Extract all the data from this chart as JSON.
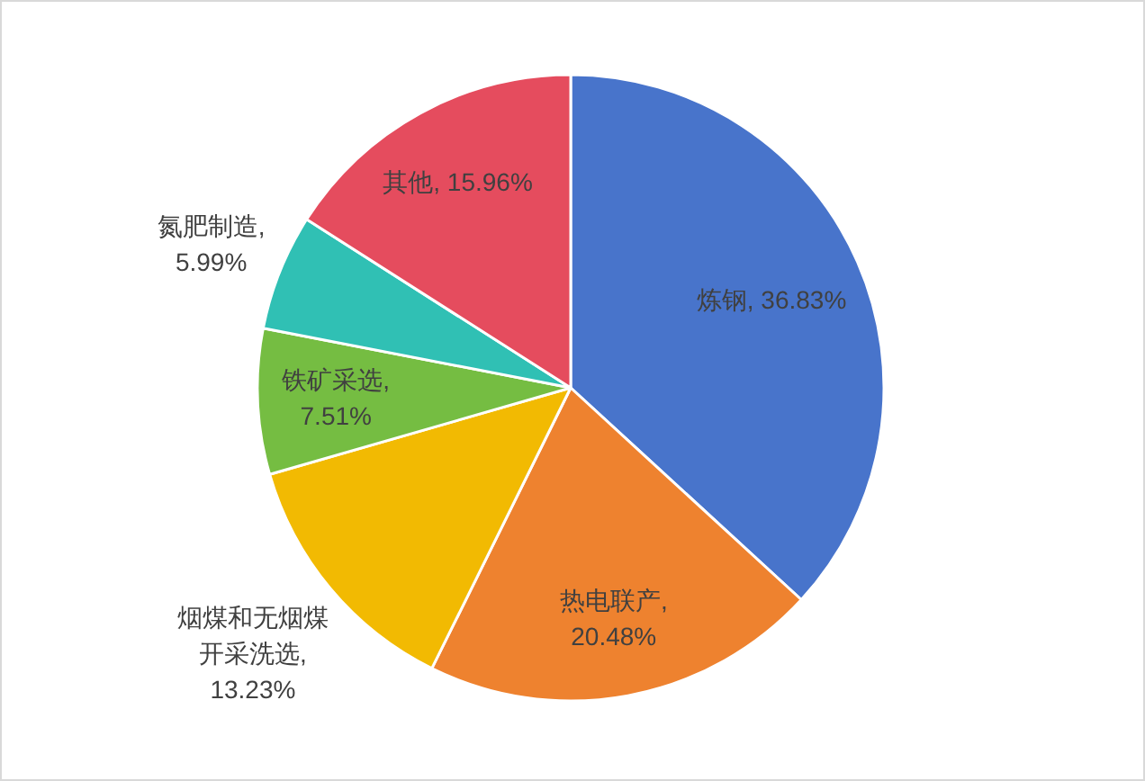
{
  "chart_data": {
    "type": "pie",
    "categories": [
      "炼钢",
      "热电联产",
      "烟煤和无烟煤开采洗选",
      "铁矿采选",
      "氮肥制造",
      "其他"
    ],
    "values": [
      36.83,
      20.48,
      13.23,
      7.51,
      5.99,
      15.96
    ],
    "colors": [
      "#4874cb",
      "#ee822f",
      "#f2ba02",
      "#75bd42",
      "#30c0b4",
      "#e54c5e"
    ],
    "value_labels": [
      ", 36.83%",
      ", 20.48%",
      ", 13.23%",
      ", 7.51%",
      ", 5.99%",
      ", 15.96%"
    ]
  }
}
